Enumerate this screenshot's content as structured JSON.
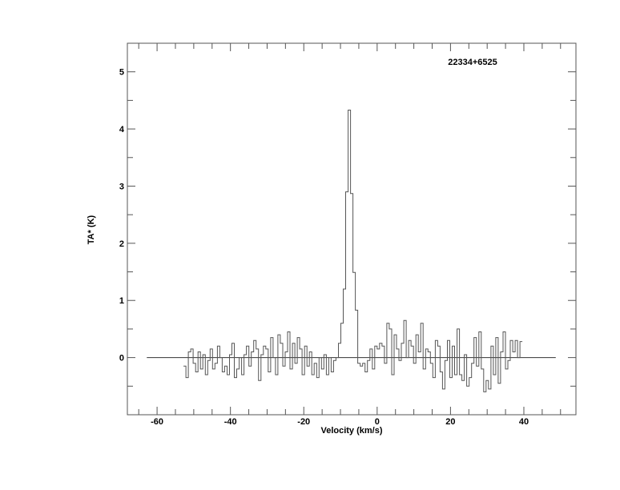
{
  "chart_data": {
    "type": "line",
    "style": "histogram-step",
    "title": "22334+6525",
    "xlabel": "Velocity (km/s)",
    "ylabel": "TA* (K)",
    "xlim": [
      -68.1,
      54.2
    ],
    "ylim": [
      -1.0,
      5.5
    ],
    "x_ticks": [
      -60,
      -40,
      -20,
      0,
      20,
      40
    ],
    "x_tick_labels": [
      "-60",
      "-40",
      "-20",
      "0",
      "20",
      "40"
    ],
    "x_minor_step": 5,
    "y_ticks": [
      0,
      1,
      2,
      3,
      4,
      5
    ],
    "y_tick_labels": [
      "0",
      "1",
      "2",
      "3",
      "4",
      "5"
    ],
    "y_minor_step": 0.5,
    "grid": false,
    "baseline": {
      "y": 0,
      "x_from": -62.8,
      "x_to": 48.7
    },
    "line_color": "#555555",
    "spectrum": {
      "x_start": -52.8,
      "channel_width": 0.66,
      "values": [
        -0.15,
        -0.35,
        0.1,
        0.15,
        -0.1,
        -0.25,
        0.1,
        -0.2,
        0.05,
        -0.3,
        -0.05,
        0.15,
        -0.2,
        -0.1,
        0.2,
        0.0,
        -0.25,
        -0.15,
        -0.3,
        0.05,
        0.25,
        -0.35,
        -0.2,
        0.0,
        -0.3,
        0.05,
        0.2,
        -0.15,
        0.1,
        0.3,
        0.15,
        -0.4,
        0.05,
        0.2,
        0.15,
        -0.25,
        0.35,
        0.0,
        -0.3,
        0.4,
        0.25,
        -0.15,
        0.1,
        0.45,
        -0.2,
        0.25,
        -0.1,
        0.35,
        0.15,
        -0.3,
        0.2,
        -0.15,
        0.1,
        -0.3,
        -0.1,
        -0.35,
        0.0,
        -0.2,
        0.05,
        -0.3,
        0.0,
        -0.25,
        -0.05,
        0.0,
        0.25,
        0.6,
        1.2,
        2.9,
        4.33,
        2.87,
        1.49,
        0.83,
        -0.1,
        -0.15,
        -0.1,
        -0.25,
        -0.05,
        0.15,
        -0.2,
        0.2,
        0.15,
        0.25,
        0.2,
        -0.1,
        0.6,
        0.5,
        -0.3,
        0.4,
        0.15,
        -0.05,
        0.25,
        0.65,
        0.0,
        0.3,
        0.2,
        -0.1,
        0.4,
        0.1,
        0.6,
        -0.2,
        0.15,
        0.1,
        -0.1,
        -0.35,
        0.3,
        0.2,
        -0.25,
        -0.55,
        -0.05,
        0.3,
        -0.35,
        0.2,
        -0.3,
        0.5,
        -0.3,
        -0.4,
        0.05,
        -0.5,
        -0.35,
        -0.1,
        0.35,
        -0.15,
        0.45,
        -0.2,
        -0.6,
        -0.4,
        -0.55,
        0.2,
        -0.3,
        0.35,
        -0.45,
        0.1,
        0.45,
        -0.2,
        -0.05,
        0.3,
        0.1,
        0.3,
        0.0,
        0.28
      ]
    }
  }
}
